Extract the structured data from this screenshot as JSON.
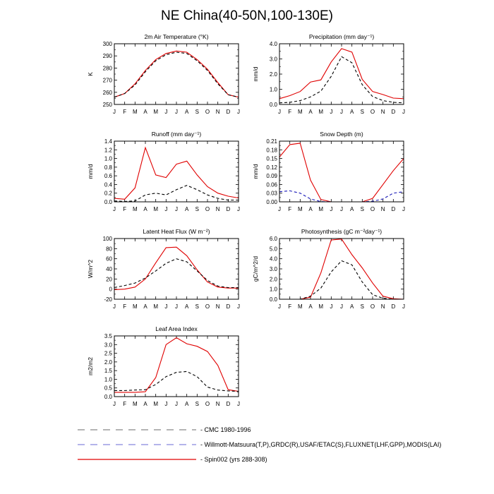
{
  "figure": {
    "title": "NE China(40-50N,100-130E)"
  },
  "months": [
    "J",
    "F",
    "M",
    "A",
    "M",
    "J",
    "J",
    "A",
    "S",
    "O",
    "N",
    "D",
    "J"
  ],
  "series_styles": [
    {
      "key": "cmc",
      "color": "#000000",
      "dash": "4,3"
    },
    {
      "key": "obs",
      "color": "#1a1ab8",
      "dash": "4,3"
    },
    {
      "key": "model",
      "color": "#e00000",
      "dash": ""
    }
  ],
  "legend": {
    "items": [
      {
        "label": "CMC 1980-1996",
        "color": "#888888",
        "dash": "10,8"
      },
      {
        "label": "Willmott-Matsuura(T,P),GRDC(R),USAF/ETAC(S),FLUXNET(LHF,GPP),MODIS(LAI)",
        "color": "#8888dd",
        "dash": "10,8"
      },
      {
        "label": "Spin002 (yrs 288-308)",
        "color": "#e00000",
        "dash": ""
      }
    ]
  },
  "chart_data": [
    {
      "type": "line",
      "title": "2m Air Temperature (°K)",
      "ylabel": "K",
      "ylim": [
        250,
        300
      ],
      "yticks": [
        "250",
        "260",
        "270",
        "280",
        "290",
        "300"
      ],
      "categories": [
        "J",
        "F",
        "M",
        "A",
        "M",
        "J",
        "J",
        "A",
        "S",
        "O",
        "N",
        "D",
        "J"
      ],
      "series": [
        {
          "key": "model",
          "values": [
            256,
            259,
            267,
            278,
            287,
            292,
            294,
            293,
            287,
            279,
            268,
            258,
            256
          ]
        },
        {
          "key": "cmc",
          "values": [
            256,
            259,
            266,
            277,
            286,
            291,
            293,
            292,
            286,
            278,
            267,
            258,
            256
          ]
        }
      ]
    },
    {
      "type": "line",
      "title": "Precipitation (mm day⁻¹)",
      "ylabel": "mm/d",
      "ylim": [
        0,
        4
      ],
      "yticks": [
        "0.0",
        "1.0",
        "2.0",
        "3.0",
        "4.0"
      ],
      "categories": [
        "J",
        "F",
        "M",
        "A",
        "M",
        "J",
        "J",
        "A",
        "S",
        "O",
        "N",
        "D",
        "J"
      ],
      "series": [
        {
          "key": "model",
          "values": [
            0.38,
            0.58,
            0.85,
            1.48,
            1.62,
            2.8,
            3.68,
            3.45,
            1.65,
            0.85,
            0.65,
            0.42,
            0.38
          ]
        },
        {
          "key": "cmc",
          "values": [
            0.1,
            0.14,
            0.25,
            0.5,
            0.88,
            1.85,
            3.15,
            2.75,
            1.3,
            0.52,
            0.25,
            0.14,
            0.1
          ]
        }
      ]
    },
    {
      "type": "line",
      "title": "Runoff (mm day⁻¹)",
      "ylabel": "mm/d",
      "ylim": [
        0,
        1.4
      ],
      "yticks": [
        "0.0",
        "0.2",
        "0.4",
        "0.6",
        "0.8",
        "1.0",
        "1.2",
        "1.4"
      ],
      "categories": [
        "J",
        "F",
        "M",
        "A",
        "M",
        "J",
        "J",
        "A",
        "S",
        "O",
        "N",
        "D",
        "J"
      ],
      "series": [
        {
          "key": "model",
          "values": [
            0.08,
            0.06,
            0.32,
            1.25,
            0.62,
            0.56,
            0.87,
            0.94,
            0.62,
            0.35,
            0.2,
            0.13,
            0.09
          ]
        },
        {
          "key": "cmc",
          "values": [
            0.02,
            0.01,
            0.02,
            0.16,
            0.2,
            0.16,
            0.28,
            0.38,
            0.28,
            0.16,
            0.08,
            0.04,
            0.04
          ]
        }
      ]
    },
    {
      "type": "line",
      "title": "Snow Depth (m)",
      "ylabel": "mm/d",
      "ylim": [
        0,
        0.21
      ],
      "yticks": [
        "0.00",
        "0.03",
        "0.06",
        "0.09",
        "0.12",
        "0.15",
        "0.18",
        "0.21"
      ],
      "categories": [
        "J",
        "F",
        "M",
        "A",
        "M",
        "J",
        "J",
        "A",
        "S",
        "O",
        "N",
        "D",
        "J"
      ],
      "series": [
        {
          "key": "model",
          "values": [
            0.155,
            0.198,
            0.203,
            0.075,
            0.008,
            0.0,
            0.0,
            0.0,
            0.0,
            0.012,
            0.06,
            0.108,
            0.15
          ]
        },
        {
          "key": "obs",
          "values": [
            0.035,
            0.038,
            0.03,
            0.01,
            0.001,
            0.0,
            0.0,
            0.0,
            0.0,
            0.002,
            0.01,
            0.03,
            0.035
          ]
        }
      ]
    },
    {
      "type": "line",
      "title": "Latent Heat Flux (W m⁻²)",
      "ylabel": "W/m^2",
      "ylim": [
        -20,
        100
      ],
      "yticks": [
        "-20",
        "0",
        "20",
        "40",
        "60",
        "80",
        "100"
      ],
      "categories": [
        "J",
        "F",
        "M",
        "A",
        "M",
        "J",
        "J",
        "A",
        "S",
        "O",
        "N",
        "D",
        "J"
      ],
      "series": [
        {
          "key": "model",
          "values": [
            -1,
            0,
            4,
            20,
            52,
            82,
            83,
            66,
            38,
            14,
            4,
            2,
            2
          ]
        },
        {
          "key": "cmc",
          "values": [
            3,
            7,
            12,
            22,
            36,
            51,
            60,
            54,
            36,
            17,
            6,
            3,
            3
          ]
        }
      ]
    },
    {
      "type": "line",
      "title": "Photosynthesis (gC m⁻²day⁻¹)",
      "ylabel": "gC/m^2/d",
      "ylim": [
        0,
        6
      ],
      "yticks": [
        "0.0",
        "1.0",
        "2.0",
        "3.0",
        "4.0",
        "5.0",
        "6.0"
      ],
      "categories": [
        "J",
        "F",
        "M",
        "A",
        "M",
        "J",
        "J",
        "A",
        "S",
        "O",
        "N",
        "D",
        "J"
      ],
      "series": [
        {
          "key": "model",
          "values": [
            0.0,
            0.0,
            0.0,
            0.2,
            2.6,
            5.85,
            5.95,
            4.4,
            3.1,
            1.6,
            0.3,
            0.05,
            0.0
          ]
        },
        {
          "key": "cmc",
          "values": [
            0.0,
            0.0,
            0.0,
            0.3,
            1.1,
            2.7,
            3.8,
            3.4,
            1.7,
            0.45,
            0.1,
            0.0,
            0.0
          ]
        }
      ]
    },
    {
      "type": "line",
      "title": "Leaf Area Index",
      "ylabel": "m2/m2",
      "ylim": [
        0,
        3.5
      ],
      "yticks": [
        "0.0",
        "0.5",
        "1.0",
        "1.5",
        "2.0",
        "2.5",
        "3.0",
        "3.5"
      ],
      "categories": [
        "J",
        "F",
        "M",
        "A",
        "M",
        "J",
        "J",
        "A",
        "S",
        "O",
        "N",
        "D",
        "J"
      ],
      "series": [
        {
          "key": "model",
          "values": [
            0.25,
            0.25,
            0.25,
            0.28,
            1.1,
            3.0,
            3.4,
            3.05,
            2.9,
            2.6,
            1.8,
            0.4,
            0.3
          ]
        },
        {
          "key": "cmc",
          "values": [
            0.35,
            0.35,
            0.38,
            0.4,
            0.7,
            1.15,
            1.4,
            1.45,
            1.15,
            0.55,
            0.38,
            0.33,
            0.3
          ]
        }
      ]
    }
  ]
}
